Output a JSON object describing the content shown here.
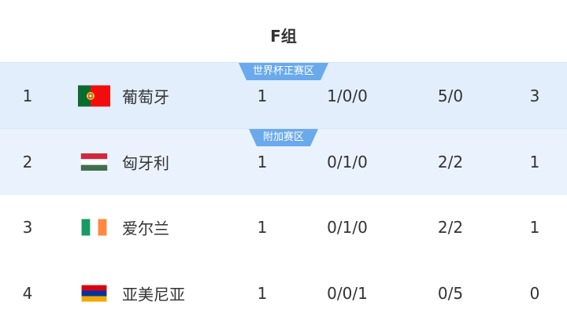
{
  "group_title": "F组",
  "zones": {
    "qualify": "世界杯正赛区",
    "playoff": "附加赛区"
  },
  "colors": {
    "qualify_bg": "#e2eefb",
    "playoff_bg": "#eaf3fd",
    "badge": "#6aa9ec"
  },
  "rows": [
    {
      "rank": "1",
      "flag": "portugal-flag",
      "team": "葡萄牙",
      "played": "1",
      "wdl": "1/0/0",
      "goals": "5/0",
      "points": "3"
    },
    {
      "rank": "2",
      "flag": "hungary-flag",
      "team": "匈牙利",
      "played": "1",
      "wdl": "0/1/0",
      "goals": "2/2",
      "points": "1"
    },
    {
      "rank": "3",
      "flag": "ireland-flag",
      "team": "爱尔兰",
      "played": "1",
      "wdl": "0/1/0",
      "goals": "2/2",
      "points": "1"
    },
    {
      "rank": "4",
      "flag": "armenia-flag",
      "team": "亚美尼亚",
      "played": "1",
      "wdl": "0/0/1",
      "goals": "0/5",
      "points": "0"
    }
  ]
}
